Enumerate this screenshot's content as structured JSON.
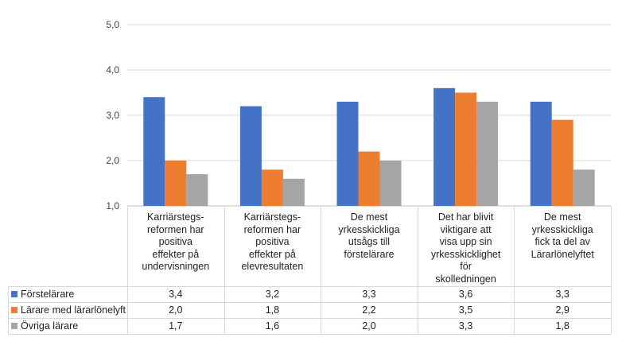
{
  "chart_data": {
    "type": "bar",
    "ylim": [
      1.0,
      5.0
    ],
    "yticks": [
      "1,0",
      "2,0",
      "3,0",
      "4,0",
      "5,0"
    ],
    "grid": true,
    "legend": "data-table",
    "categories": [
      [
        "Karriärstegs-",
        "reformen har",
        "positiva",
        "effekter på",
        "undervisningen"
      ],
      [
        "Karriärstegs-",
        "reformen har",
        "positiva",
        "effekter på",
        "elevresultaten"
      ],
      [
        "De mest",
        "yrkesskickliga",
        "utsågs till",
        "förstelärare"
      ],
      [
        "Det har blivit",
        "viktigare att",
        "visa upp sin",
        "yrkesskicklighet",
        "för",
        "skolledningen"
      ],
      [
        "De mest",
        "yrkesskickliga",
        "fick ta del av",
        "Lärarlönelyftet"
      ]
    ],
    "series": [
      {
        "name": "Förstelärare",
        "color": "#4472C4",
        "values": [
          3.4,
          3.2,
          3.3,
          3.6,
          3.3
        ],
        "labels": [
          "3,4",
          "3,2",
          "3,3",
          "3,6",
          "3,3"
        ]
      },
      {
        "name": "Lärare med lärarlönelyft",
        "color": "#ED7D31",
        "values": [
          2.0,
          1.8,
          2.2,
          3.5,
          2.9
        ],
        "labels": [
          "2,0",
          "1,8",
          "2,2",
          "3,5",
          "2,9"
        ]
      },
      {
        "name": "Övriga lärare",
        "color": "#A5A5A5",
        "values": [
          1.7,
          1.6,
          2.0,
          3.3,
          1.8
        ],
        "labels": [
          "1,7",
          "1,6",
          "2,0",
          "3,3",
          "1,8"
        ]
      }
    ]
  }
}
